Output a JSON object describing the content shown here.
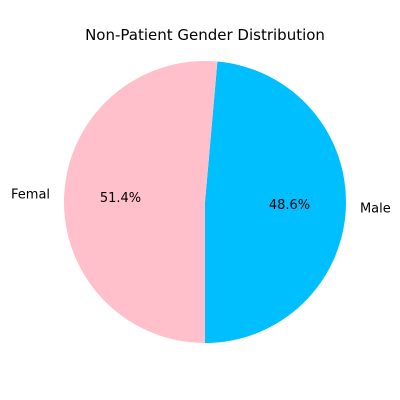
{
  "chart_data": {
    "type": "pie",
    "title": "Non-Patient Gender Distribution",
    "slices": [
      {
        "label": "Male",
        "value": 48.6,
        "percent_label": "48.6%",
        "color": "#00bfff"
      },
      {
        "label": "Femal",
        "value": 51.4,
        "percent_label": "51.4%",
        "color": "#ffc0cb"
      }
    ],
    "start_angle_deg": 270,
    "direction": "counterclockwise",
    "legend": "none"
  }
}
